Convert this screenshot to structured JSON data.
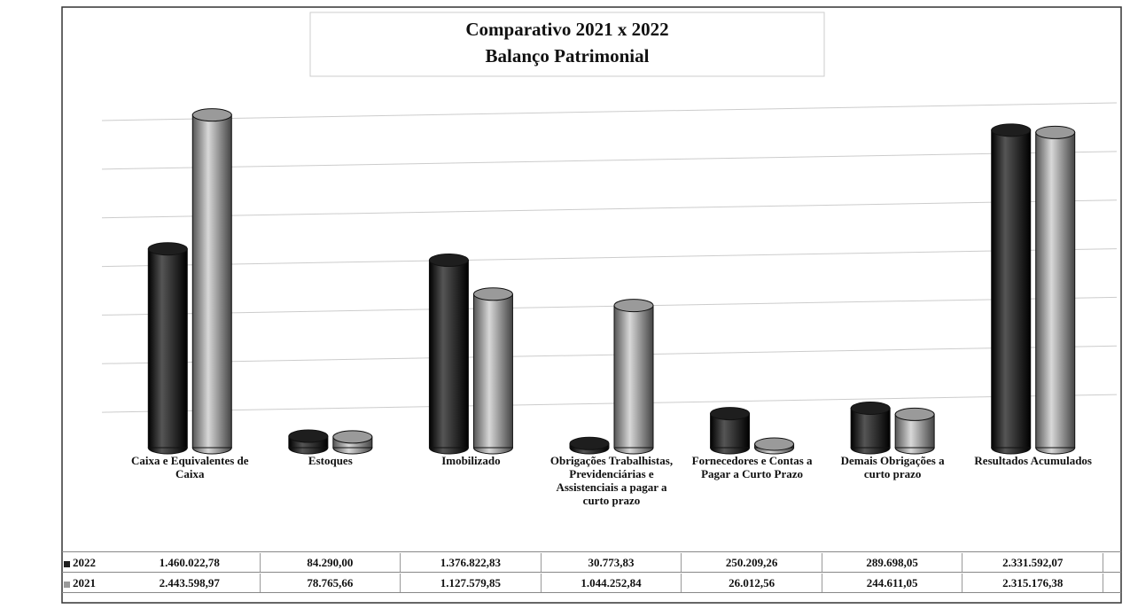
{
  "chart_data": {
    "type": "bar",
    "title": "Comparativo 2021 x 2022",
    "subtitle": "Balanço Patrimonial",
    "categories": [
      "Caixa e Equivalentes de Caixa",
      "Estoques",
      "Imobilizado",
      "Obrigações Trabalhistas, Previdenciárias e Assistenciais a pagar a curto prazo",
      "Fornecedores e Contas a Pagar a Curto Prazo",
      "Demais Obrigações a curto prazo",
      "Resultados Acumulados"
    ],
    "series": [
      {
        "name": "2022",
        "color": "#1e1e1e",
        "values": [
          1460022.78,
          84290.0,
          1376822.83,
          30773.83,
          250209.26,
          289698.05,
          2331592.07
        ],
        "value_labels": [
          "1.460.022,78",
          "84.290,00",
          "1.376.822,83",
          "30.773,83",
          "250.209,26",
          "289.698,05",
          "2.331.592,07"
        ]
      },
      {
        "name": "2021",
        "color": "#9a9a9a",
        "values": [
          2443598.97,
          78765.66,
          1127579.85,
          1044252.84,
          26012.56,
          244611.05,
          2315176.38
        ],
        "value_labels": [
          "2.443.598,97",
          "78.765,66",
          "1.127.579,85",
          "1.044.252,84",
          "26.012,56",
          "244.611,05",
          "2.315.176,38"
        ]
      }
    ],
    "ylim": [
      0,
      2500000
    ],
    "grid": true
  }
}
